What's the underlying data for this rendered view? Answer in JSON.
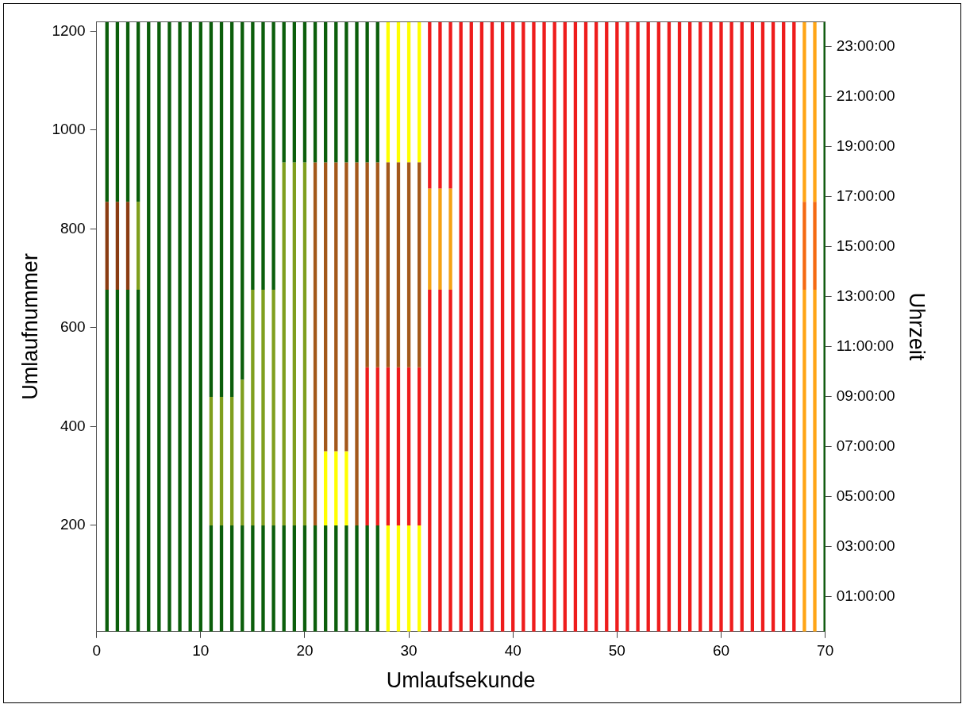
{
  "chart_data": {
    "type": "bar",
    "xlabel": "Umlaufsekunde",
    "ylabel": "Umlaufnummer",
    "y2label": "Uhrzeit",
    "x": [
      1,
      2,
      3,
      4,
      5,
      6,
      7,
      8,
      9,
      10,
      11,
      12,
      13,
      14,
      15,
      16,
      17,
      18,
      19,
      20,
      21,
      22,
      23,
      24,
      25,
      26,
      27,
      28,
      29,
      30,
      31,
      32,
      33,
      34,
      35,
      36,
      37,
      38,
      39,
      40,
      41,
      42,
      43,
      44,
      45,
      46,
      47,
      48,
      49,
      50,
      51,
      52,
      53,
      54,
      55,
      56,
      57,
      58,
      59,
      60,
      61,
      62,
      63,
      64,
      65,
      66,
      67,
      68,
      69,
      70
    ],
    "xlim": [
      0,
      70
    ],
    "xticks": [
      0,
      10,
      20,
      30,
      40,
      50,
      60,
      70
    ],
    "ylim": [
      -15,
      1220
    ],
    "yticks": [
      200,
      400,
      600,
      800,
      1000,
      1200
    ],
    "y2lim": [
      -0.4,
      24
    ],
    "y2ticks": [
      {
        "value": 1,
        "label": "01:00:00"
      },
      {
        "value": 3,
        "label": "03:00:00"
      },
      {
        "value": 5,
        "label": "05:00:00"
      },
      {
        "value": 7,
        "label": "07:00:00"
      },
      {
        "value": 9,
        "label": "09:00:00"
      },
      {
        "value": 11,
        "label": "11:00:00"
      },
      {
        "value": 13,
        "label": "13:00:00"
      },
      {
        "value": 15,
        "label": "15:00:00"
      },
      {
        "value": 17,
        "label": "17:00:00"
      },
      {
        "value": 19,
        "label": "19:00:00"
      },
      {
        "value": 21,
        "label": "21:00:00"
      },
      {
        "value": 23,
        "label": "23:00:00"
      }
    ],
    "grid": false,
    "series": [
      {
        "color": "#0b5e0b",
        "base": [
          -15,
          -15,
          -15,
          -15,
          -15,
          -15,
          -15,
          -15,
          -15,
          -15,
          -15,
          -15,
          -15,
          -15,
          -15,
          -15,
          -15,
          -15,
          -15,
          -15,
          -15,
          -15,
          -15,
          -15,
          -15,
          -15,
          -15,
          null,
          null,
          null,
          null,
          null,
          null,
          null,
          null,
          null,
          null,
          null,
          null,
          null,
          null,
          null,
          null,
          null,
          null,
          null,
          null,
          null,
          null,
          null,
          null,
          null,
          null,
          null,
          null,
          null,
          null,
          null,
          null,
          null,
          null,
          null,
          null,
          null,
          null,
          null,
          null,
          null,
          null,
          -15
        ],
        "values": [
          692,
          692,
          692,
          692,
          1235,
          1235,
          1235,
          1235,
          1235,
          1235,
          215,
          215,
          215,
          215,
          215,
          215,
          215,
          215,
          215,
          215,
          215,
          215,
          215,
          215,
          215,
          215,
          215,
          null,
          null,
          null,
          null,
          null,
          null,
          null,
          null,
          null,
          null,
          null,
          null,
          null,
          null,
          null,
          null,
          null,
          null,
          null,
          null,
          null,
          null,
          null,
          null,
          null,
          null,
          null,
          null,
          null,
          null,
          null,
          null,
          null,
          null,
          null,
          null,
          null,
          null,
          null,
          null,
          null,
          null,
          1235
        ]
      },
      {
        "color": "#0b5e0b",
        "base": [
          855,
          855,
          855,
          855,
          null,
          null,
          null,
          null,
          null,
          null,
          460,
          460,
          460,
          495,
          677,
          677,
          677,
          935,
          935,
          935,
          935,
          935,
          935,
          935,
          935,
          935,
          935,
          null,
          null,
          null,
          null,
          null,
          null,
          null,
          null,
          null,
          null,
          null,
          null,
          null,
          null,
          null,
          null,
          null,
          null,
          null,
          null,
          null,
          null,
          null,
          null,
          null,
          null,
          null,
          null,
          null,
          null,
          null,
          null,
          null,
          null,
          null,
          null,
          null,
          null,
          null,
          null,
          null,
          null,
          null
        ],
        "values": [
          365,
          365,
          365,
          365,
          null,
          null,
          null,
          null,
          null,
          null,
          760,
          760,
          760,
          725,
          543,
          543,
          543,
          285,
          285,
          285,
          285,
          285,
          285,
          285,
          285,
          285,
          285,
          null,
          null,
          null,
          null,
          null,
          null,
          null,
          null,
          null,
          null,
          null,
          null,
          null,
          null,
          null,
          null,
          null,
          null,
          null,
          null,
          null,
          null,
          null,
          null,
          null,
          null,
          null,
          null,
          null,
          null,
          null,
          null,
          null,
          null,
          null,
          null,
          null,
          null,
          null,
          null,
          null,
          null,
          null
        ]
      },
      {
        "color": "#8a3c12",
        "base": [
          677,
          677,
          677,
          null,
          null,
          null,
          null,
          null,
          null,
          null,
          null,
          null,
          null,
          null,
          null,
          null,
          null,
          null,
          null,
          null,
          null,
          null,
          null,
          null,
          null,
          null,
          null,
          null,
          null,
          null,
          null,
          null,
          null,
          null,
          null,
          null,
          null,
          null,
          null,
          null,
          null,
          null,
          null,
          null,
          null,
          null,
          null,
          null,
          null,
          null,
          null,
          null,
          null,
          null,
          null,
          null,
          null,
          null,
          null,
          null,
          null,
          null,
          null,
          null,
          null,
          null,
          null,
          null,
          null,
          null
        ],
        "values": [
          178,
          178,
          178,
          null,
          null,
          null,
          null,
          null,
          null,
          null,
          null,
          null,
          null,
          null,
          null,
          null,
          null,
          null,
          null,
          null,
          null,
          null,
          null,
          null,
          null,
          null,
          null,
          null,
          null,
          null,
          null,
          null,
          null,
          null,
          null,
          null,
          null,
          null,
          null,
          null,
          null,
          null,
          null,
          null,
          null,
          null,
          null,
          null,
          null,
          null,
          null,
          null,
          null,
          null,
          null,
          null,
          null,
          null,
          null,
          null,
          null,
          null,
          null,
          null,
          null,
          null,
          null,
          null,
          null,
          null
        ]
      },
      {
        "color": "#7f9f1e",
        "base": [
          null,
          null,
          null,
          677,
          null,
          null,
          null,
          null,
          null,
          null,
          200,
          200,
          200,
          200,
          200,
          200,
          200,
          200,
          200,
          200,
          null,
          null,
          null,
          null,
          null,
          null,
          null,
          null,
          null,
          null,
          null,
          null,
          null,
          null,
          null,
          null,
          null,
          null,
          null,
          null,
          null,
          null,
          null,
          null,
          null,
          null,
          null,
          null,
          null,
          null,
          null,
          null,
          null,
          null,
          null,
          null,
          null,
          null,
          null,
          null,
          null,
          null,
          null,
          null,
          null,
          null,
          null,
          null,
          null,
          null
        ],
        "values": [
          null,
          null,
          null,
          178,
          null,
          null,
          null,
          null,
          null,
          null,
          260,
          260,
          260,
          295,
          477,
          477,
          477,
          735,
          735,
          735,
          null,
          null,
          null,
          null,
          null,
          null,
          null,
          null,
          null,
          null,
          null,
          null,
          null,
          null,
          null,
          null,
          null,
          null,
          null,
          null,
          null,
          null,
          null,
          null,
          null,
          null,
          null,
          null,
          null,
          null,
          null,
          null,
          null,
          null,
          null,
          null,
          null,
          null,
          null,
          null,
          null,
          null,
          null,
          null,
          null,
          null,
          null,
          null,
          null,
          null
        ]
      },
      {
        "color": "#a3581a",
        "base": [
          null,
          null,
          null,
          null,
          null,
          null,
          null,
          null,
          null,
          null,
          null,
          null,
          null,
          null,
          null,
          null,
          null,
          null,
          null,
          null,
          200,
          350,
          350,
          350,
          200,
          520,
          520,
          520,
          520,
          520,
          520,
          null,
          null,
          null,
          null,
          null,
          null,
          null,
          null,
          null,
          null,
          null,
          null,
          null,
          null,
          null,
          null,
          null,
          null,
          null,
          null,
          null,
          null,
          null,
          null,
          null,
          null,
          null,
          null,
          null,
          null,
          null,
          null,
          null,
          null,
          null,
          null,
          null,
          null,
          null
        ],
        "values": [
          null,
          null,
          null,
          null,
          null,
          null,
          null,
          null,
          null,
          null,
          null,
          null,
          null,
          null,
          null,
          null,
          null,
          null,
          null,
          null,
          735,
          585,
          585,
          585,
          735,
          415,
          415,
          415,
          415,
          415,
          415,
          null,
          null,
          null,
          null,
          null,
          null,
          null,
          null,
          null,
          null,
          null,
          null,
          null,
          null,
          null,
          null,
          null,
          null,
          null,
          null,
          null,
          null,
          null,
          null,
          null,
          null,
          null,
          null,
          null,
          null,
          null,
          null,
          null,
          null,
          null,
          null,
          null,
          null,
          null
        ]
      },
      {
        "color": "#ffff00",
        "base": [
          null,
          null,
          null,
          null,
          null,
          null,
          null,
          null,
          null,
          null,
          null,
          null,
          null,
          null,
          null,
          null,
          null,
          null,
          null,
          null,
          null,
          200,
          200,
          200,
          null,
          null,
          null,
          -15,
          -15,
          -15,
          -15,
          null,
          null,
          null,
          null,
          null,
          null,
          null,
          null,
          null,
          null,
          null,
          null,
          null,
          null,
          null,
          null,
          null,
          null,
          null,
          null,
          null,
          null,
          null,
          null,
          null,
          null,
          null,
          null,
          null,
          null,
          null,
          null,
          null,
          null,
          null,
          null,
          null,
          null,
          null
        ],
        "values": [
          null,
          null,
          null,
          null,
          null,
          null,
          null,
          null,
          null,
          null,
          null,
          null,
          null,
          null,
          null,
          null,
          null,
          null,
          null,
          null,
          null,
          150,
          150,
          150,
          null,
          null,
          null,
          215,
          215,
          215,
          215,
          null,
          null,
          null,
          null,
          null,
          null,
          null,
          null,
          null,
          null,
          null,
          null,
          null,
          null,
          null,
          null,
          null,
          null,
          null,
          null,
          null,
          null,
          null,
          null,
          null,
          null,
          null,
          null,
          null,
          null,
          null,
          null,
          null,
          null,
          null,
          null,
          null,
          null,
          null
        ]
      },
      {
        "color": "#ffff00",
        "base": [
          null,
          null,
          null,
          null,
          null,
          null,
          null,
          null,
          null,
          null,
          null,
          null,
          null,
          null,
          null,
          null,
          null,
          null,
          null,
          null,
          null,
          null,
          null,
          null,
          null,
          null,
          null,
          935,
          935,
          935,
          935,
          null,
          null,
          null,
          null,
          null,
          null,
          null,
          null,
          null,
          null,
          null,
          null,
          null,
          null,
          null,
          null,
          null,
          null,
          null,
          null,
          null,
          null,
          null,
          null,
          null,
          null,
          null,
          null,
          null,
          null,
          null,
          null,
          null,
          null,
          null,
          null,
          null,
          null,
          null
        ],
        "values": [
          null,
          null,
          null,
          null,
          null,
          null,
          null,
          null,
          null,
          null,
          null,
          null,
          null,
          null,
          null,
          null,
          null,
          null,
          null,
          null,
          null,
          null,
          null,
          null,
          null,
          null,
          null,
          285,
          285,
          285,
          285,
          null,
          null,
          null,
          null,
          null,
          null,
          null,
          null,
          null,
          null,
          null,
          null,
          null,
          null,
          null,
          null,
          null,
          null,
          null,
          null,
          null,
          null,
          null,
          null,
          null,
          null,
          null,
          null,
          null,
          null,
          null,
          null,
          null,
          null,
          null,
          null,
          null,
          null,
          null
        ]
      },
      {
        "color": "#ee1c1c",
        "base": [
          null,
          null,
          null,
          null,
          null,
          null,
          null,
          null,
          null,
          null,
          null,
          null,
          null,
          null,
          null,
          null,
          null,
          null,
          null,
          null,
          null,
          null,
          null,
          null,
          null,
          200,
          200,
          200,
          200,
          200,
          200,
          -15,
          -15,
          -15,
          -15,
          -15,
          -15,
          -15,
          -15,
          -15,
          -15,
          -15,
          -15,
          -15,
          -15,
          -15,
          -15,
          -15,
          -15,
          -15,
          -15,
          -15,
          -15,
          -15,
          -15,
          -15,
          -15,
          -15,
          -15,
          -15,
          -15,
          -15,
          -15,
          -15,
          -15,
          -15,
          -15,
          null,
          null,
          null
        ],
        "values": [
          null,
          null,
          null,
          null,
          null,
          null,
          null,
          null,
          null,
          null,
          null,
          null,
          null,
          null,
          null,
          null,
          null,
          null,
          null,
          null,
          null,
          null,
          null,
          null,
          null,
          320,
          320,
          320,
          320,
          320,
          320,
          692,
          692,
          692,
          1235,
          1235,
          1235,
          1235,
          1235,
          1235,
          1235,
          1235,
          1235,
          1235,
          1235,
          1235,
          1235,
          1235,
          1235,
          1235,
          1235,
          1235,
          1235,
          1235,
          1235,
          1235,
          1235,
          1235,
          1235,
          1235,
          1235,
          1235,
          1235,
          1235,
          1235,
          1235,
          1235,
          null,
          null,
          null
        ]
      },
      {
        "color": "#ee1c1c",
        "base": [
          null,
          null,
          null,
          null,
          null,
          null,
          null,
          null,
          null,
          null,
          null,
          null,
          null,
          null,
          null,
          null,
          null,
          null,
          null,
          null,
          null,
          null,
          null,
          null,
          null,
          null,
          null,
          null,
          null,
          null,
          null,
          882,
          882,
          882,
          null,
          null,
          null,
          null,
          null,
          null,
          null,
          null,
          null,
          null,
          null,
          null,
          null,
          null,
          null,
          null,
          null,
          null,
          null,
          null,
          null,
          null,
          null,
          null,
          null,
          null,
          null,
          null,
          null,
          null,
          null,
          null,
          null,
          null,
          null,
          null
        ],
        "values": [
          null,
          null,
          null,
          null,
          null,
          null,
          null,
          null,
          null,
          null,
          null,
          null,
          null,
          null,
          null,
          null,
          null,
          null,
          null,
          null,
          null,
          null,
          null,
          null,
          null,
          null,
          null,
          null,
          null,
          null,
          null,
          338,
          338,
          338,
          null,
          null,
          null,
          null,
          null,
          null,
          null,
          null,
          null,
          null,
          null,
          null,
          null,
          null,
          null,
          null,
          null,
          null,
          null,
          null,
          null,
          null,
          null,
          null,
          null,
          null,
          null,
          null,
          null,
          null,
          null,
          null,
          null,
          null,
          null,
          null
        ]
      },
      {
        "color": "#f4a214",
        "base": [
          null,
          null,
          null,
          null,
          null,
          null,
          null,
          null,
          null,
          null,
          null,
          null,
          null,
          null,
          null,
          null,
          null,
          null,
          null,
          null,
          null,
          null,
          null,
          null,
          null,
          null,
          null,
          null,
          null,
          null,
          null,
          677,
          677,
          677,
          null,
          null,
          null,
          null,
          null,
          null,
          null,
          null,
          null,
          null,
          null,
          null,
          null,
          null,
          null,
          null,
          null,
          null,
          null,
          null,
          null,
          null,
          null,
          null,
          null,
          null,
          null,
          null,
          null,
          null,
          null,
          null,
          null,
          null,
          null,
          null
        ],
        "values": [
          null,
          null,
          null,
          null,
          null,
          null,
          null,
          null,
          null,
          null,
          null,
          null,
          null,
          null,
          null,
          null,
          null,
          null,
          null,
          null,
          null,
          null,
          null,
          null,
          null,
          null,
          null,
          null,
          null,
          null,
          null,
          205,
          205,
          205,
          null,
          null,
          null,
          null,
          null,
          null,
          null,
          null,
          null,
          null,
          null,
          null,
          null,
          null,
          null,
          null,
          null,
          null,
          null,
          null,
          null,
          null,
          null,
          null,
          null,
          null,
          null,
          null,
          null,
          null,
          null,
          null,
          null,
          null,
          null,
          null
        ]
      },
      {
        "color": "#ffa516",
        "base": [
          null,
          null,
          null,
          null,
          null,
          null,
          null,
          null,
          null,
          null,
          null,
          null,
          null,
          null,
          null,
          null,
          null,
          null,
          null,
          null,
          null,
          null,
          null,
          null,
          null,
          null,
          null,
          null,
          null,
          null,
          null,
          null,
          null,
          null,
          null,
          null,
          null,
          null,
          null,
          null,
          null,
          null,
          null,
          null,
          null,
          null,
          null,
          null,
          null,
          null,
          null,
          null,
          null,
          null,
          null,
          null,
          null,
          null,
          null,
          null,
          null,
          null,
          null,
          null,
          null,
          null,
          null,
          -15,
          -15,
          null
        ],
        "values": [
          null,
          null,
          null,
          null,
          null,
          null,
          null,
          null,
          null,
          null,
          null,
          null,
          null,
          null,
          null,
          null,
          null,
          null,
          null,
          null,
          null,
          null,
          null,
          null,
          null,
          null,
          null,
          null,
          null,
          null,
          null,
          null,
          null,
          null,
          null,
          null,
          null,
          null,
          null,
          null,
          null,
          null,
          null,
          null,
          null,
          null,
          null,
          null,
          null,
          null,
          null,
          null,
          null,
          null,
          null,
          null,
          null,
          null,
          null,
          null,
          null,
          null,
          null,
          null,
          null,
          null,
          null,
          692,
          692,
          null
        ]
      },
      {
        "color": "#f56a12",
        "base": [
          null,
          null,
          null,
          null,
          null,
          null,
          null,
          null,
          null,
          null,
          null,
          null,
          null,
          null,
          null,
          null,
          null,
          null,
          null,
          null,
          null,
          null,
          null,
          null,
          null,
          null,
          null,
          null,
          null,
          null,
          null,
          null,
          null,
          null,
          null,
          null,
          null,
          null,
          null,
          null,
          null,
          null,
          null,
          null,
          null,
          null,
          null,
          null,
          null,
          null,
          null,
          null,
          null,
          null,
          null,
          null,
          null,
          null,
          null,
          null,
          null,
          null,
          null,
          null,
          null,
          null,
          null,
          677,
          677,
          null
        ],
        "values": [
          null,
          null,
          null,
          null,
          null,
          null,
          null,
          null,
          null,
          null,
          null,
          null,
          null,
          null,
          null,
          null,
          null,
          null,
          null,
          null,
          null,
          null,
          null,
          null,
          null,
          null,
          null,
          null,
          null,
          null,
          null,
          null,
          null,
          null,
          null,
          null,
          null,
          null,
          null,
          null,
          null,
          null,
          null,
          null,
          null,
          null,
          null,
          null,
          null,
          null,
          null,
          null,
          null,
          null,
          null,
          null,
          null,
          null,
          null,
          null,
          null,
          null,
          null,
          null,
          null,
          null,
          null,
          178,
          178,
          null
        ]
      },
      {
        "color": "#ffa516",
        "base": [
          null,
          null,
          null,
          null,
          null,
          null,
          null,
          null,
          null,
          null,
          null,
          null,
          null,
          null,
          null,
          null,
          null,
          null,
          null,
          null,
          null,
          null,
          null,
          null,
          null,
          null,
          null,
          null,
          null,
          null,
          null,
          null,
          null,
          null,
          null,
          null,
          null,
          null,
          null,
          null,
          null,
          null,
          null,
          null,
          null,
          null,
          null,
          null,
          null,
          null,
          null,
          null,
          null,
          null,
          null,
          null,
          null,
          null,
          null,
          null,
          null,
          null,
          null,
          null,
          null,
          null,
          null,
          855,
          855,
          null
        ],
        "values": [
          null,
          null,
          null,
          null,
          null,
          null,
          null,
          null,
          null,
          null,
          null,
          null,
          null,
          null,
          null,
          null,
          null,
          null,
          null,
          null,
          null,
          null,
          null,
          null,
          null,
          null,
          null,
          null,
          null,
          null,
          null,
          null,
          null,
          null,
          null,
          null,
          null,
          null,
          null,
          null,
          null,
          null,
          null,
          null,
          null,
          null,
          null,
          null,
          null,
          null,
          null,
          null,
          null,
          null,
          null,
          null,
          null,
          null,
          null,
          null,
          null,
          null,
          null,
          null,
          null,
          null,
          null,
          365,
          365,
          null
        ]
      }
    ]
  }
}
